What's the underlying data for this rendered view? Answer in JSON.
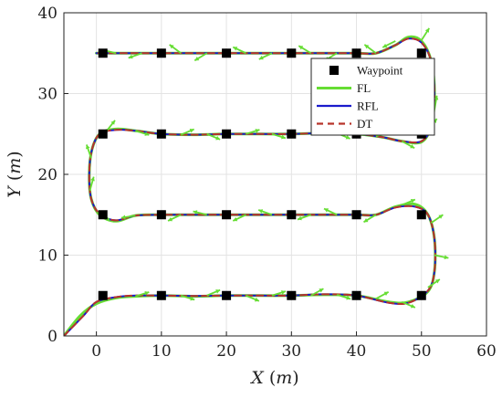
{
  "chart_data": {
    "type": "line",
    "xlabel": "X (m)",
    "ylabel": "Y (m)",
    "xlim": [
      -5,
      60
    ],
    "ylim": [
      0,
      40
    ],
    "xticks": [
      0,
      10,
      20,
      30,
      40,
      50,
      60
    ],
    "yticks": [
      0,
      10,
      20,
      30,
      40
    ],
    "grid": true,
    "legend": {
      "placement": "upper-right-inside",
      "entries": [
        {
          "label": "Waypoint",
          "marker": "square",
          "color": "#000000"
        },
        {
          "label": "FL",
          "style": "solid",
          "color": "#66dd33"
        },
        {
          "label": "RFL",
          "style": "solid",
          "color": "#1a1acc"
        },
        {
          "label": "DT",
          "style": "dashed",
          "color": "#b8342a"
        }
      ]
    },
    "waypoints": [
      [
        1,
        5
      ],
      [
        10,
        5
      ],
      [
        20,
        5
      ],
      [
        30,
        5
      ],
      [
        40,
        5
      ],
      [
        50,
        5
      ],
      [
        50,
        15
      ],
      [
        40,
        15
      ],
      [
        30,
        15
      ],
      [
        20,
        15
      ],
      [
        10,
        15
      ],
      [
        1,
        15
      ],
      [
        1,
        25
      ],
      [
        10,
        25
      ],
      [
        20,
        25
      ],
      [
        30,
        25
      ],
      [
        40,
        25
      ],
      [
        50,
        25
      ],
      [
        50,
        35
      ],
      [
        40,
        35
      ],
      [
        30,
        35
      ],
      [
        20,
        35
      ],
      [
        10,
        35
      ],
      [
        1,
        35
      ]
    ],
    "series": [
      {
        "name": "FL",
        "color": "#66dd33",
        "points": [
          [
            -5,
            0
          ],
          [
            -2.5,
            2.5
          ],
          [
            0,
            4
          ],
          [
            3,
            4.7
          ],
          [
            6,
            4.9
          ],
          [
            10,
            5
          ],
          [
            15,
            4.9
          ],
          [
            20,
            5
          ],
          [
            25,
            5
          ],
          [
            30,
            5
          ],
          [
            35,
            5.1
          ],
          [
            40,
            5
          ],
          [
            45,
            4.2
          ],
          [
            48,
            4.2
          ],
          [
            51,
            5.5
          ],
          [
            52,
            8
          ],
          [
            52,
            12
          ],
          [
            51,
            15
          ],
          [
            49,
            16.3
          ],
          [
            46,
            16
          ],
          [
            43,
            15
          ],
          [
            40,
            15
          ],
          [
            35,
            15
          ],
          [
            30,
            15
          ],
          [
            25,
            15
          ],
          [
            20,
            15
          ],
          [
            15,
            15
          ],
          [
            10,
            15
          ],
          [
            6,
            14.9
          ],
          [
            3,
            14.2
          ],
          [
            0.5,
            15
          ],
          [
            -0.8,
            17
          ],
          [
            -1.1,
            20
          ],
          [
            -0.7,
            23
          ],
          [
            0.5,
            25
          ],
          [
            3,
            25.6
          ],
          [
            6,
            25.4
          ],
          [
            10,
            25
          ],
          [
            15,
            24.9
          ],
          [
            20,
            25
          ],
          [
            25,
            25
          ],
          [
            30,
            25
          ],
          [
            35,
            25.1
          ],
          [
            40,
            25
          ],
          [
            44,
            24.6
          ],
          [
            47,
            24.1
          ],
          [
            50,
            24
          ],
          [
            51.5,
            26
          ],
          [
            52,
            30
          ],
          [
            51.5,
            34
          ],
          [
            50,
            36.5
          ],
          [
            48,
            37
          ],
          [
            46,
            36
          ],
          [
            43,
            35
          ],
          [
            40,
            35
          ],
          [
            35,
            35
          ],
          [
            30,
            35
          ],
          [
            25,
            35
          ],
          [
            20,
            35
          ],
          [
            15,
            35
          ],
          [
            10,
            35
          ],
          [
            5,
            35
          ],
          [
            0,
            35
          ]
        ]
      },
      {
        "name": "RFL",
        "color": "#1a1acc",
        "points": [
          [
            -5,
            0
          ],
          [
            -2,
            2.5
          ],
          [
            0,
            4.2
          ],
          [
            3,
            4.8
          ],
          [
            6,
            5
          ],
          [
            10,
            5
          ],
          [
            15,
            4.95
          ],
          [
            20,
            5
          ],
          [
            25,
            5
          ],
          [
            30,
            5
          ],
          [
            35,
            5.15
          ],
          [
            40,
            5
          ],
          [
            45,
            4.1
          ],
          [
            48,
            4.1
          ],
          [
            51,
            5.6
          ],
          [
            52,
            8
          ],
          [
            52,
            12
          ],
          [
            51,
            15
          ],
          [
            49,
            16
          ],
          [
            46,
            15.9
          ],
          [
            43,
            15
          ],
          [
            40,
            15
          ],
          [
            35,
            15
          ],
          [
            30,
            15
          ],
          [
            25,
            15
          ],
          [
            20,
            15
          ],
          [
            15,
            15
          ],
          [
            10,
            15
          ],
          [
            6,
            14.9
          ],
          [
            3,
            14.3
          ],
          [
            0.5,
            15.1
          ],
          [
            -0.8,
            17
          ],
          [
            -1.1,
            20
          ],
          [
            -0.7,
            23
          ],
          [
            0.5,
            25
          ],
          [
            3,
            25.5
          ],
          [
            6,
            25.4
          ],
          [
            10,
            25
          ],
          [
            15,
            24.9
          ],
          [
            20,
            25
          ],
          [
            25,
            25
          ],
          [
            30,
            25
          ],
          [
            35,
            25.1
          ],
          [
            40,
            25
          ],
          [
            44,
            24.6
          ],
          [
            47,
            24.1
          ],
          [
            50,
            24.1
          ],
          [
            51.5,
            26
          ],
          [
            52,
            30
          ],
          [
            51.5,
            34
          ],
          [
            50,
            36.3
          ],
          [
            48,
            36.8
          ],
          [
            46,
            36
          ],
          [
            43,
            35
          ],
          [
            40,
            35
          ],
          [
            35,
            35
          ],
          [
            30,
            35
          ],
          [
            25,
            35
          ],
          [
            20,
            35
          ],
          [
            15,
            35
          ],
          [
            10,
            35
          ],
          [
            5,
            35
          ],
          [
            0,
            35
          ]
        ]
      },
      {
        "name": "DT",
        "color": "#b8342a",
        "points": [
          [
            -5,
            0
          ],
          [
            -2,
            2.5
          ],
          [
            0,
            4.2
          ],
          [
            3,
            4.8
          ],
          [
            6,
            5
          ],
          [
            10,
            5
          ],
          [
            15,
            4.95
          ],
          [
            20,
            5
          ],
          [
            25,
            5
          ],
          [
            30,
            5
          ],
          [
            35,
            5.15
          ],
          [
            40,
            5
          ],
          [
            45,
            4.1
          ],
          [
            48,
            4.1
          ],
          [
            51,
            5.6
          ],
          [
            52,
            8
          ],
          [
            52,
            12
          ],
          [
            51,
            15
          ],
          [
            49,
            16
          ],
          [
            46,
            15.9
          ],
          [
            43,
            15
          ],
          [
            40,
            15
          ],
          [
            35,
            15
          ],
          [
            30,
            15
          ],
          [
            25,
            15
          ],
          [
            20,
            15
          ],
          [
            15,
            15
          ],
          [
            10,
            15
          ],
          [
            6,
            14.9
          ],
          [
            3,
            14.3
          ],
          [
            0.5,
            15.1
          ],
          [
            -0.8,
            17
          ],
          [
            -1.1,
            20
          ],
          [
            -0.7,
            23
          ],
          [
            0.5,
            25
          ],
          [
            3,
            25.5
          ],
          [
            6,
            25.4
          ],
          [
            10,
            25
          ],
          [
            15,
            24.9
          ],
          [
            20,
            25
          ],
          [
            25,
            25
          ],
          [
            30,
            25
          ],
          [
            35,
            25.1
          ],
          [
            40,
            25
          ],
          [
            44,
            24.6
          ],
          [
            47,
            24.1
          ],
          [
            50,
            24.1
          ],
          [
            51.5,
            26
          ],
          [
            52,
            30
          ],
          [
            51.5,
            34
          ],
          [
            50,
            36.3
          ],
          [
            48,
            36.8
          ],
          [
            46,
            36
          ],
          [
            43,
            35
          ],
          [
            40,
            35
          ],
          [
            35,
            35
          ],
          [
            30,
            35
          ],
          [
            25,
            35
          ],
          [
            20,
            35
          ],
          [
            15,
            35
          ],
          [
            10,
            35
          ],
          [
            5,
            35
          ],
          [
            0,
            35
          ]
        ]
      }
    ],
    "heading_arrows": {
      "color": "#66dd33",
      "length_m": 2.2,
      "points": [
        [
          6,
          4.9,
          0.3
        ],
        [
          13,
          5,
          -0.3
        ],
        [
          17,
          5,
          0.4
        ],
        [
          23,
          5,
          -0.4
        ],
        [
          27,
          5,
          0.3
        ],
        [
          33,
          5,
          0.5
        ],
        [
          37,
          5.1,
          -0.3
        ],
        [
          43,
          4.6,
          0.5
        ],
        [
          47,
          4.2,
          -0.4
        ],
        [
          51,
          6,
          0.6
        ],
        [
          52,
          10,
          -0.2
        ],
        [
          51.5,
          14,
          0.6
        ],
        [
          47,
          16.2,
          0.4
        ],
        [
          43,
          15,
          -2.6
        ],
        [
          37,
          15,
          2.7
        ],
        [
          33,
          15,
          -2.8
        ],
        [
          27,
          15,
          2.8
        ],
        [
          23,
          15,
          -2.7
        ],
        [
          17,
          15,
          2.9
        ],
        [
          13,
          15,
          -2.7
        ],
        [
          6,
          14.9,
          3.3
        ],
        [
          2,
          14.4,
          2.6
        ],
        [
          -1,
          18,
          1.3
        ],
        [
          -0.8,
          22,
          1.9
        ],
        [
          1.5,
          25.3,
          0.9
        ],
        [
          6,
          25.4,
          -0.3
        ],
        [
          13,
          24.9,
          0.4
        ],
        [
          17,
          25,
          -0.4
        ],
        [
          23,
          25,
          0.3
        ],
        [
          27,
          25,
          -0.3
        ],
        [
          33,
          25,
          0.4
        ],
        [
          37,
          25.1,
          -0.4
        ],
        [
          43,
          24.7,
          0.4
        ],
        [
          47,
          24.1,
          -0.5
        ],
        [
          51,
          25.5,
          0.9
        ],
        [
          52,
          28,
          1.4
        ],
        [
          51.7,
          32,
          1.8
        ],
        [
          50,
          36.6,
          1.0
        ],
        [
          46,
          36.5,
          3.6
        ],
        [
          43,
          35,
          2.5
        ],
        [
          37,
          35,
          -2.6
        ],
        [
          33,
          35,
          2.6
        ],
        [
          27,
          35,
          -2.7
        ],
        [
          23,
          35,
          2.7
        ],
        [
          17,
          35,
          -2.6
        ],
        [
          13,
          35,
          2.5
        ],
        [
          7,
          35,
          -2.8
        ],
        [
          3,
          35,
          2.9
        ]
      ]
    }
  }
}
